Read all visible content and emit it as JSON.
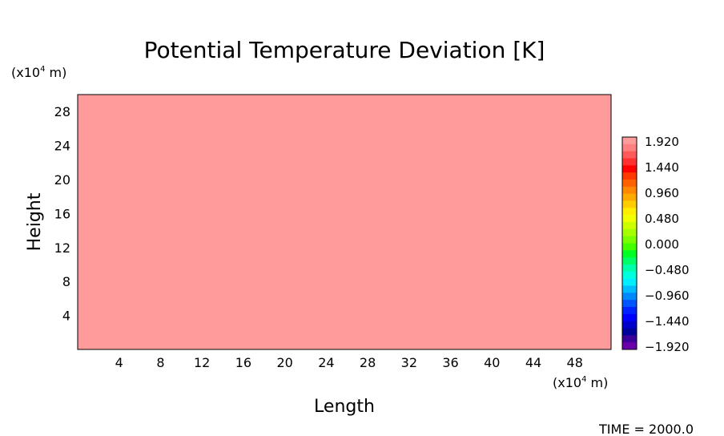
{
  "chart_data": {
    "type": "heatmap",
    "title": "Potential Temperature Deviation [K]",
    "xlabel": "Length",
    "ylabel": "Height",
    "x_unit": "(x10⁴ m)",
    "y_unit": "(x10⁴ m)",
    "x_unit_parts": [
      "(x10",
      "4",
      " m)"
    ],
    "y_unit_parts": [
      "(x10",
      "4",
      " m)"
    ],
    "xlim": [
      0,
      51.5
    ],
    "ylim": [
      0,
      30
    ],
    "x_ticks": [
      4,
      8,
      12,
      16,
      20,
      24,
      28,
      32,
      36,
      40,
      44,
      48
    ],
    "y_ticks": [
      4,
      8,
      12,
      16,
      20,
      24,
      28
    ],
    "field_value": 1.92,
    "colorbar": {
      "min": -1.92,
      "max": 1.92,
      "labels": [
        "1.920",
        "1.440",
        "0.960",
        "0.480",
        "0.000",
        "−0.480",
        "−0.960",
        "−1.440",
        "−1.920"
      ],
      "colors_top_to_bottom": [
        "#ff9b9b",
        "#ff8080",
        "#ff5a5a",
        "#ff3030",
        "#ff0000",
        "#ff3a00",
        "#ff6000",
        "#ff8800",
        "#ffaa00",
        "#ffcc00",
        "#ffee00",
        "#f2ff00",
        "#ccff00",
        "#a6ff00",
        "#7aff00",
        "#44ff00",
        "#00ff22",
        "#00ff66",
        "#00ffaa",
        "#00ffdd",
        "#00eeff",
        "#00bbff",
        "#0088ff",
        "#0055ff",
        "#0022ff",
        "#0000ff",
        "#0000cc",
        "#00009a",
        "#3a0099",
        "#6a00aa"
      ]
    },
    "grid": false,
    "legend": "colorbar-right"
  },
  "footer": {
    "time_label": "TIME = 2000.0"
  }
}
